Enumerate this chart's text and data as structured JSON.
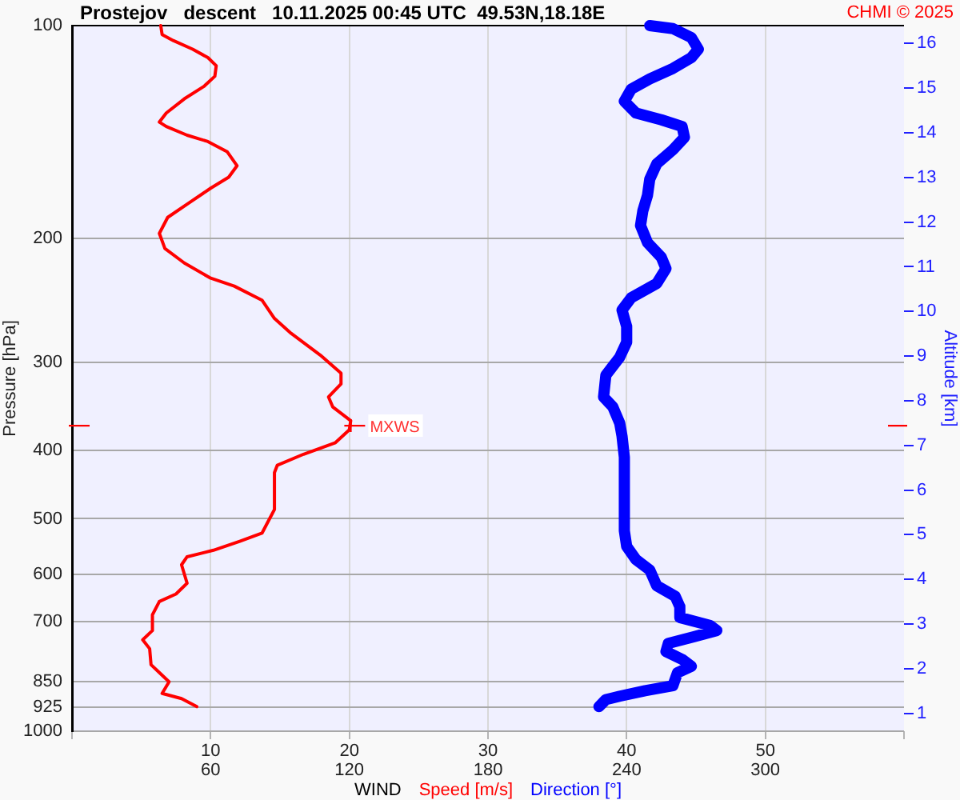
{
  "chart_data": {
    "type": "line",
    "title": "Prostejov   descent   10.11.2025 00:45 UTC  49.53N,18.18E",
    "xlabel": "WIND",
    "ylabel": "Pressure [hPa]",
    "y2label": "Altitude [km]",
    "xlim": [
      0,
      60
    ],
    "xticks": [
      {
        "value": 0,
        "label": null
      },
      10,
      20,
      30,
      40,
      50,
      {
        "value": 60,
        "label": null
      }
    ],
    "x2lim": [
      0,
      360
    ],
    "x2ticks": [
      60,
      120,
      180,
      240,
      300
    ],
    "ylim": [
      1000,
      100
    ],
    "yticks": [
      100,
      200,
      300,
      400,
      500,
      600,
      700,
      850,
      925,
      1000
    ],
    "log": true,
    "y2lim": [
      0.6,
      16.4
    ],
    "y2ticks": [
      1,
      2,
      3,
      4,
      5,
      6,
      7,
      8,
      9,
      10,
      11,
      12,
      13,
      14,
      15,
      16
    ],
    "grid": true,
    "legend": "bottom",
    "marker": "none",
    "series": [
      {
        "name": "Speed [m/s]",
        "color": "#ff0000",
        "x": [
          6.4,
          6.5,
          7.3,
          8.7,
          9.8,
          10.4,
          10.3,
          9.5,
          8.1,
          6.8,
          6.3,
          6.8,
          8.3,
          9.8,
          11.2,
          11.9,
          11.3,
          10.0,
          8.5,
          6.9,
          6.3,
          6.7,
          8.1,
          10.0,
          11.7,
          13.7,
          14.6,
          15.8,
          17.9,
          19.4,
          19.4,
          18.5,
          18.8,
          20.1,
          20.0,
          19.0,
          16.7,
          14.8,
          14.6,
          14.6,
          14.2,
          13.7,
          12.1,
          10.2,
          8.3,
          7.9,
          8.3,
          7.5,
          6.3,
          5.8,
          5.8,
          5.1,
          5.6,
          5.7,
          6.3,
          7.0,
          6.5,
          7.9,
          9.0
        ],
        "values": [
          100,
          103,
          105,
          108,
          111,
          114,
          118,
          122,
          127,
          133,
          137,
          139,
          143,
          146,
          151,
          158,
          164,
          170,
          178,
          187,
          197,
          207,
          217,
          228,
          234,
          245,
          260,
          273,
          293,
          311,
          322,
          336,
          347,
          363,
          374,
          390,
          405,
          420,
          430,
          485,
          502,
          524,
          538,
          554,
          566,
          581,
          617,
          639,
          655,
          684,
          720,
          742,
          764,
          805,
          826,
          851,
          884,
          899,
          923
        ]
      },
      {
        "name": "Direction [°]",
        "color": "#0000ff",
        "axis": "x2",
        "x": [
          250,
          260,
          268,
          271,
          268,
          260,
          250,
          242,
          239,
          244,
          255,
          264,
          265,
          260,
          253,
          250,
          249,
          247,
          246,
          249,
          255,
          257,
          253,
          242,
          238,
          240,
          240,
          237,
          231,
          230,
          234,
          237,
          238,
          239,
          239,
          240,
          244,
          250,
          253,
          261,
          263,
          263,
          276,
          279,
          269,
          258,
          257,
          264,
          268,
          262,
          260,
          248,
          237,
          231,
          228
        ],
        "values": [
          100,
          101,
          104,
          108,
          111,
          115,
          119,
          123,
          128,
          133,
          136,
          139,
          144,
          150,
          157,
          165,
          174,
          183,
          192,
          203,
          213,
          221,
          232,
          243,
          253,
          267,
          281,
          295,
          313,
          336,
          347,
          366,
          382,
          409,
          520,
          547,
          571,
          591,
          622,
          644,
          666,
          690,
          708,
          720,
          735,
          751,
          771,
          791,
          809,
          826,
          862,
          876,
          892,
          902,
          923
        ]
      }
    ],
    "annotations": [
      "CHMI © 2025",
      {
        "text": "MXWS",
        "x": 20.1,
        "y": 369
      }
    ]
  }
}
